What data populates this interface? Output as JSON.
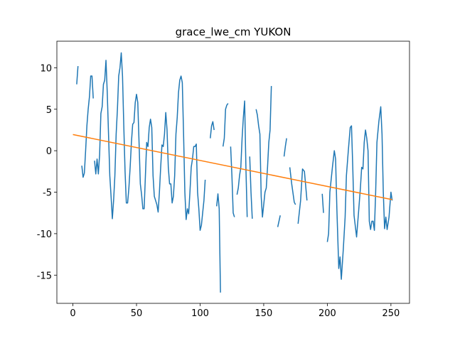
{
  "chart_data": {
    "type": "line",
    "title": "grace_lwe_cm YUKON",
    "xlim": [
      -12.6,
      264.6
    ],
    "ylim": [
      -18.4,
      13.2
    ],
    "xticks": [
      0,
      50,
      100,
      150,
      200,
      250
    ],
    "yticks": [
      -15,
      -10,
      -5,
      0,
      5,
      10
    ],
    "series": [
      {
        "color": "#1f77b4",
        "x": [
          3,
          4,
          5.5,
          7,
          8,
          9,
          10,
          11,
          12,
          13,
          14,
          15,
          16,
          16.5,
          17,
          18,
          19,
          20,
          21,
          22,
          23,
          24,
          25,
          26,
          27,
          28,
          29,
          30,
          31,
          32,
          33,
          34,
          35,
          36,
          37,
          38,
          39,
          40,
          41,
          42,
          43,
          44,
          45,
          46,
          47,
          48,
          49,
          50,
          51,
          52,
          53,
          54,
          55,
          56,
          57,
          58,
          59,
          60,
          61,
          62,
          63,
          64,
          65,
          66,
          67,
          68,
          69,
          70,
          71,
          72,
          73,
          74,
          75,
          76,
          77,
          78,
          79,
          80,
          81,
          82,
          83,
          84,
          85,
          86,
          87,
          88,
          89,
          90,
          91,
          92,
          93,
          94,
          95,
          96,
          97,
          98,
          99,
          100,
          101,
          102,
          103,
          104,
          106,
          108,
          109,
          110,
          111,
          112,
          113,
          114,
          115,
          116,
          117,
          118,
          119,
          120,
          121,
          122,
          123,
          124,
          125,
          126,
          127,
          128,
          129,
          130,
          131,
          132,
          133,
          134,
          135,
          136,
          137,
          138,
          139,
          140,
          141,
          142.5,
          144,
          145,
          146,
          147,
          148,
          149,
          150,
          151,
          152,
          153,
          154,
          155,
          156,
          158,
          161,
          163,
          164.5,
          166,
          167,
          168,
          169,
          170.5,
          172,
          174,
          175,
          176,
          177,
          179,
          180.5,
          182,
          184,
          190,
          196,
          197,
          198.5,
          200,
          201,
          202,
          204,
          205.5,
          206.5,
          207.5,
          209,
          210,
          211,
          212.5,
          214,
          215,
          216.5,
          218,
          219,
          220,
          221,
          223,
          224.5,
          226,
          227,
          228,
          229,
          230,
          231,
          232,
          233,
          234,
          235,
          236,
          237,
          238,
          239,
          240.5,
          242,
          243,
          244,
          245,
          246,
          247,
          248.5,
          250,
          251
        ],
        "values": [
          8,
          10.2,
          null,
          -1.8,
          -3.2,
          -2.7,
          0,
          3,
          5,
          6.5,
          9,
          9,
          6.3,
          null,
          -1.2,
          -2.8,
          -1,
          -2.8,
          -0.5,
          4.5,
          5.3,
          8,
          8.5,
          10.9,
          7,
          2,
          -3,
          -5.5,
          -8.2,
          -6,
          -3,
          2,
          5,
          9,
          10,
          11.8,
          9,
          3,
          -2.5,
          -6.3,
          -6.3,
          -4.5,
          -2,
          1,
          3.2,
          3.4,
          5.8,
          6.8,
          5.8,
          1,
          -4,
          -5.3,
          -7,
          -7,
          -3,
          1,
          0.5,
          2.8,
          3.8,
          2.8,
          -3,
          -5.5,
          -6,
          -6.5,
          -7.4,
          -5,
          -2,
          0.7,
          0.5,
          2,
          4.6,
          2.5,
          -2,
          -4,
          -4,
          -6.3,
          -5.5,
          -3,
          2,
          4,
          7,
          8.5,
          9,
          8.2,
          2,
          -5,
          -8.3,
          -7,
          -7.6,
          -5,
          -2,
          -1,
          0.5,
          0.5,
          0.8,
          -5,
          -7,
          -9.6,
          -9,
          -7.5,
          -6,
          -3.5,
          null,
          1.5,
          3,
          3.5,
          2.5,
          null,
          -6.7,
          -5.2,
          -7,
          -17.1,
          null,
          0.5,
          1.5,
          5,
          5.5,
          5.7,
          null,
          0.5,
          -3,
          -7.5,
          -8,
          null,
          -5.3,
          -4.5,
          -3,
          -2,
          1.5,
          4,
          6,
          -2,
          -8,
          null,
          -0.7,
          -5,
          -8.2,
          null,
          5,
          4.3,
          3,
          2,
          -5.5,
          -8,
          -6.5,
          -5,
          -4.5,
          -2,
          1,
          2.5,
          7.8,
          null,
          -9.2,
          -7.8,
          null,
          -0.7,
          0.5,
          1.5,
          null,
          -2,
          -4,
          -6.2,
          -6.5,
          null,
          -8.8,
          -6,
          -2.2,
          -2.5,
          -6,
          null,
          -5.2,
          -7.5,
          null,
          -11,
          -10,
          -5,
          -2,
          0,
          -1,
          -7,
          -14.2,
          -12.8,
          -15.5,
          -12,
          -8,
          -3,
          0,
          2.8,
          3,
          -2,
          -7.8,
          -10.4,
          -7.5,
          -4.5,
          -2,
          -2.2,
          1,
          2.5,
          1.5,
          0,
          -8.5,
          -9.5,
          -8.5,
          -8.5,
          -9.6,
          -5,
          1,
          3.5,
          5.3,
          2,
          -5,
          -9.4,
          -8,
          -9.5,
          -8,
          -5,
          -6
        ]
      },
      {
        "color": "#ff7f0e",
        "x": [
          0,
          251
        ],
        "values": [
          1.95,
          -5.9
        ]
      }
    ]
  }
}
